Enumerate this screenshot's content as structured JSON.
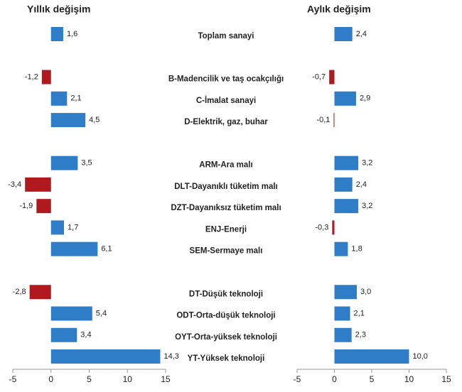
{
  "chart_data": {
    "type": "bar",
    "orientation": "horizontal",
    "categories": [
      "Toplam sanayi",
      null,
      "B-Madencilik ve taş ocakçılığı",
      "C-İmalat sanayi",
      "D-Elektrik, gaz, buhar",
      null,
      "ARM-Ara malı",
      "DLT-Dayanıklı tüketim malı",
      "DZT-Dayanıksız tüketim malı",
      "ENJ-Enerji",
      "SEM-Sermaye malı",
      null,
      "DT-Düşük teknoloji",
      "ODT-Orta-düşük teknoloji",
      "OYT-Orta-yüksek teknoloji",
      "YT-Yüksek teknoloji"
    ],
    "series": [
      {
        "name": "Yıllık değişim",
        "color": "#2e7dc6",
        "negative_color": "#b0191e",
        "values": [
          1.6,
          null,
          -1.2,
          2.1,
          4.5,
          null,
          3.5,
          -3.4,
          -1.9,
          1.7,
          6.1,
          null,
          -2.8,
          5.4,
          3.4,
          14.3
        ],
        "value_labels": [
          "1,6",
          null,
          "-1,2",
          "2,1",
          "4,5",
          null,
          "3,5",
          "-3,4",
          "-1,9",
          "1,7",
          "6,1",
          null,
          "-2,8",
          "5,4",
          "3,4",
          "14,3"
        ]
      },
      {
        "name": "Aylık değişim",
        "color": "#2e7dc6",
        "negative_color": "#b0191e",
        "values": [
          2.4,
          null,
          -0.7,
          2.9,
          -0.1,
          null,
          3.2,
          2.4,
          3.2,
          -0.3,
          1.8,
          null,
          3.0,
          2.1,
          2.3,
          10.0
        ],
        "value_labels": [
          "2,4",
          null,
          "-0,7",
          "2,9",
          "-0,1",
          null,
          "3,2",
          "2,4",
          "3,2",
          "-0,3",
          "1,8",
          null,
          "3,0",
          "2,1",
          "2,3",
          "10,0"
        ]
      }
    ],
    "xlim": [
      -5,
      15
    ],
    "xticks": [
      -5,
      0,
      5,
      10,
      15
    ]
  }
}
